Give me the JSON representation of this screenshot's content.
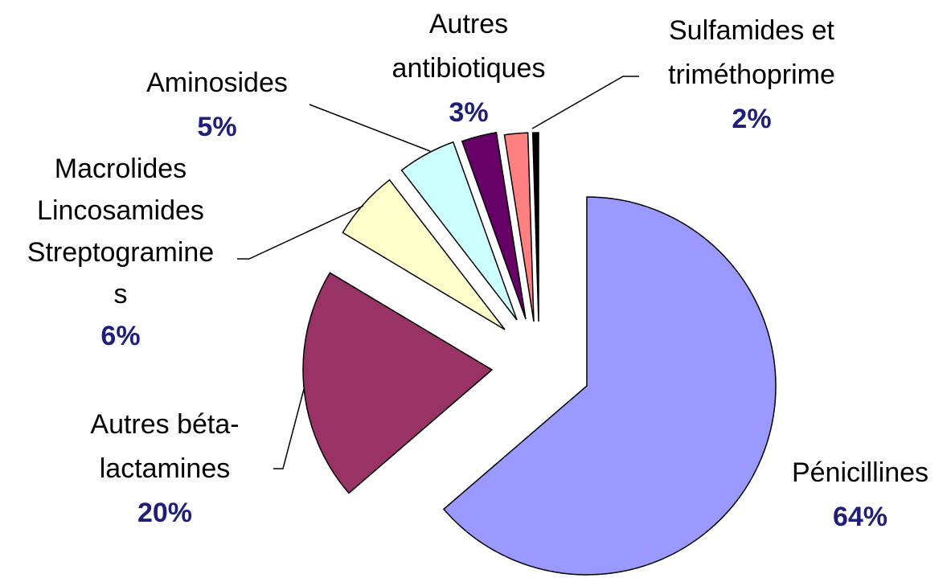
{
  "chart_data": {
    "type": "pie",
    "categories": [
      [
        "Pénicillines"
      ],
      [
        "Autres béta-",
        "lactamines"
      ],
      [
        "Macrolides",
        "Lincosamides",
        "Streptogramine",
        "s"
      ],
      [
        "Aminosides"
      ],
      [
        "Autres",
        "antibiotiques"
      ],
      [
        "Sulfamides et",
        "triméthoprime"
      ],
      null
    ],
    "values": [
      64,
      20,
      6,
      5,
      3,
      2,
      0.5
    ],
    "value_labels": [
      "64%",
      "20%",
      "6%",
      "5%",
      "3%",
      "2%",
      null
    ],
    "colors": [
      "#9999ff",
      "#993366",
      "#ffffcc",
      "#ccffff",
      "#660066",
      "#ff8080",
      "#000000"
    ]
  }
}
